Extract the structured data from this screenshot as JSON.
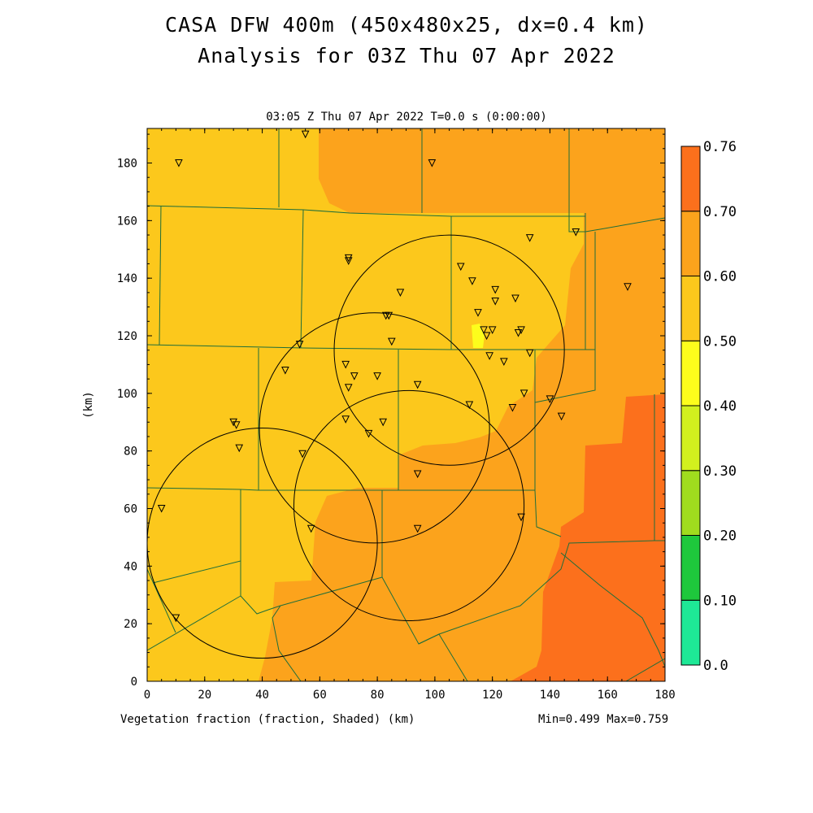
{
  "title_line1": "CASA DFW 400m (450x480x25, dx=0.4 km)",
  "title_line2": "Analysis for 03Z Thu 07 Apr 2022",
  "plot_header": "03:05 Z Thu 07 Apr 2022   T=0.0 s (0:00:00)",
  "x_axis_title": "Vegetation fraction (fraction, Shaded)  (km)",
  "y_axis_title": "(km)",
  "min_max": "Min=0.499 Max=0.759",
  "colors": {
    "fill_050_060": "#fcc81c",
    "fill_060_070": "#fca31c",
    "fill_070_076": "#fc701c",
    "fill_040_050": "#fdfd1c",
    "county_lines": "#1f6e3a"
  },
  "chart_data": {
    "type": "heatmap",
    "xlim": [
      0,
      180
    ],
    "ylim": [
      0,
      192
    ],
    "x_ticks": [
      "0",
      "20",
      "40",
      "60",
      "80",
      "100",
      "120",
      "140",
      "160",
      "180"
    ],
    "y_ticks": [
      "0",
      "20",
      "40",
      "60",
      "80",
      "100",
      "120",
      "140",
      "160",
      "180"
    ],
    "colorbar": {
      "levels": [
        "0.0",
        "0.10",
        "0.20",
        "0.30",
        "0.40",
        "0.50",
        "0.60",
        "0.70",
        "0.76"
      ],
      "colors": [
        "#1ee896",
        "#1ec83c",
        "#a0dc1e",
        "#d2f01e",
        "#fdfd1c",
        "#fcc81c",
        "#fca31c",
        "#fc701c"
      ]
    },
    "radar_rings": [
      {
        "cx": 40,
        "cy": 48,
        "r": 40
      },
      {
        "cx": 79,
        "cy": 88,
        "r": 40
      },
      {
        "cx": 91,
        "cy": 61,
        "r": 40
      },
      {
        "cx": 105,
        "cy": 115,
        "r": 40
      }
    ],
    "stations": [
      [
        11,
        180
      ],
      [
        55,
        190
      ],
      [
        99,
        180
      ],
      [
        149,
        156
      ],
      [
        167,
        137
      ],
      [
        70,
        146
      ],
      [
        70,
        147
      ],
      [
        109,
        144
      ],
      [
        113,
        139
      ],
      [
        121,
        136
      ],
      [
        133,
        154
      ],
      [
        88,
        135
      ],
      [
        84,
        127
      ],
      [
        83,
        127
      ],
      [
        115,
        128
      ],
      [
        121,
        132
      ],
      [
        128,
        133
      ],
      [
        117,
        122
      ],
      [
        120,
        122
      ],
      [
        118,
        120
      ],
      [
        129,
        121
      ],
      [
        130,
        122
      ],
      [
        133,
        114
      ],
      [
        85,
        118
      ],
      [
        53,
        117
      ],
      [
        119,
        113
      ],
      [
        124,
        111
      ],
      [
        48,
        108
      ],
      [
        69,
        110
      ],
      [
        72,
        106
      ],
      [
        80,
        106
      ],
      [
        70,
        102
      ],
      [
        94,
        103
      ],
      [
        131,
        100
      ],
      [
        140,
        98
      ],
      [
        112,
        96
      ],
      [
        127,
        95
      ],
      [
        144,
        92
      ],
      [
        30,
        90
      ],
      [
        31,
        89
      ],
      [
        69,
        91
      ],
      [
        82,
        90
      ],
      [
        77,
        86
      ],
      [
        32,
        81
      ],
      [
        54,
        79
      ],
      [
        94,
        72
      ],
      [
        5,
        60
      ],
      [
        130,
        57
      ],
      [
        57,
        53
      ],
      [
        94,
        53
      ],
      [
        10,
        22
      ]
    ]
  }
}
